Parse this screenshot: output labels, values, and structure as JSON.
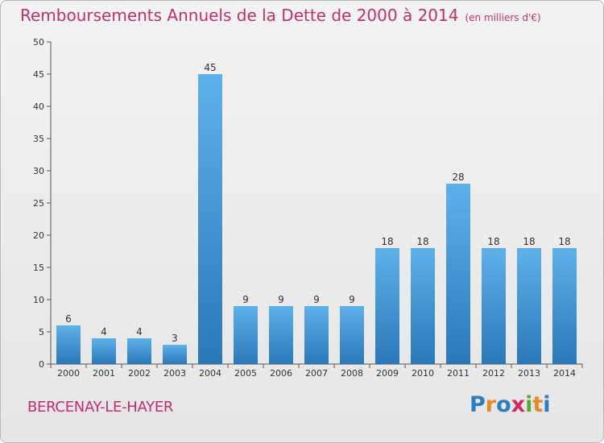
{
  "header": {
    "title": "Remboursements Annuels de la Dette de 2000 à 2014",
    "unit": "(en milliers d'€)"
  },
  "footer": {
    "place": "BERCENAY-LE-HAYER",
    "logo": [
      "P",
      "r",
      "o",
      "x",
      "i",
      "t",
      "i"
    ],
    "logo_colors": [
      "#2f7bbf",
      "#e8892b",
      "#2f7bbf",
      "#d7265f",
      "#5aa83a",
      "#e8892b",
      "#2f7bbf"
    ]
  },
  "colors": {
    "bar_top": "#5fb1ea",
    "bar_bottom": "#2a78b8",
    "axis": "#555555"
  },
  "chart_data": {
    "type": "bar",
    "title": "Remboursements Annuels de la Dette de 2000 à 2014",
    "subtitle": "(en milliers d'€)",
    "categories": [
      "2000",
      "2001",
      "2002",
      "2003",
      "2004",
      "2005",
      "2006",
      "2007",
      "2008",
      "2009",
      "2010",
      "2011",
      "2012",
      "2013",
      "2014"
    ],
    "values": [
      6,
      4,
      4,
      3,
      45,
      9,
      9,
      9,
      9,
      18,
      18,
      28,
      18,
      18,
      18
    ],
    "ylim": [
      0,
      50
    ],
    "yticks": [
      0,
      5,
      10,
      15,
      20,
      25,
      30,
      35,
      40,
      45,
      50
    ],
    "grid": false
  }
}
